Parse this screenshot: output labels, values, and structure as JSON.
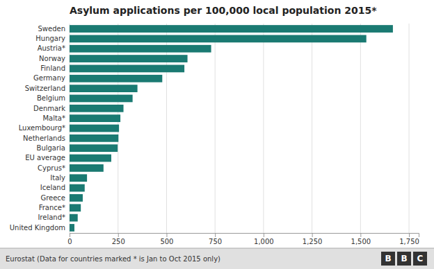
{
  "chart_data": {
    "type": "bar",
    "orientation": "horizontal",
    "title": "Asylum applications per 100,000 local population 2015*",
    "categories": [
      "United Kingdom",
      "Ireland*",
      "France*",
      "Greece",
      "Iceland",
      "Italy",
      "Cyprus*",
      "EU average",
      "Bulgaria",
      "Netherlands",
      "Luxembourg*",
      "Malta*",
      "Denmark",
      "Belgium",
      "Switzerland",
      "Germany",
      "Finland",
      "Norway",
      "Austria*",
      "Hungary",
      "Sweden"
    ],
    "values": [
      25,
      42,
      58,
      68,
      78,
      90,
      175,
      215,
      248,
      252,
      255,
      262,
      278,
      325,
      350,
      478,
      592,
      608,
      730,
      1530,
      1667
    ],
    "color": "#1a7a72",
    "xlim": [
      0,
      1800
    ],
    "xticks": [
      0,
      250,
      500,
      750,
      {
        "value": 1000,
        "label": "1,000"
      },
      {
        "value": 1250,
        "label": "1,250"
      },
      {
        "value": 1500,
        "label": "1,500"
      },
      {
        "value": 1750,
        "label": "1,750"
      }
    ],
    "grid": true,
    "annotations": [
      "Eurostat (Data for countries marked * is Jan to Oct 2015 only)",
      "BBC"
    ]
  }
}
